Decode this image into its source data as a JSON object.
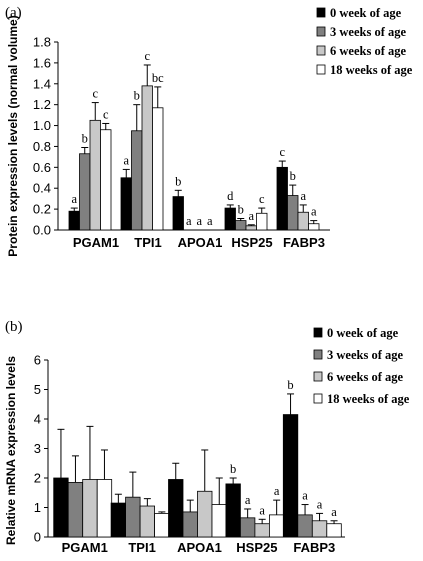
{
  "chart_data": [
    {
      "panel": "(a)",
      "type": "bar",
      "ylabel": "Protein expression levels (normal volume)",
      "ylim": [
        0,
        1.8
      ],
      "yticks": [
        0,
        0.2,
        0.4,
        0.6,
        0.8,
        1,
        1.2,
        1.4,
        1.6,
        1.8
      ],
      "ytick_labels": [
        "0.0",
        "0.2",
        "0.4",
        "0.6",
        "0.8",
        "1.0",
        "1.2",
        "1.4",
        "1.6",
        "1.8"
      ],
      "categories": [
        "PGAM1",
        "TPI1",
        "APOA1",
        "HSP25",
        "FABP3"
      ],
      "legend": "top-right",
      "grid": false,
      "series": [
        {
          "name": "0 week of age",
          "color": "#000000",
          "values": [
            0.18,
            0.5,
            0.32,
            0.21,
            0.6
          ],
          "errors": [
            0.03,
            0.08,
            0.06,
            0.03,
            0.06
          ],
          "letters": [
            "a",
            "a",
            "b",
            "d",
            "c"
          ]
        },
        {
          "name": "3 weeks of age",
          "color": "#808080",
          "values": [
            0.73,
            0.95,
            0.0,
            0.09,
            0.33
          ],
          "errors": [
            0.06,
            0.25,
            0.0,
            0.02,
            0.1
          ],
          "letters": [
            "b",
            "b",
            "a",
            "b",
            "b"
          ]
        },
        {
          "name": "6 weeks of age",
          "color": "#c8c8c8",
          "values": [
            1.05,
            1.38,
            0.0,
            0.04,
            0.17
          ],
          "errors": [
            0.17,
            0.2,
            0.0,
            0.01,
            0.07
          ],
          "letters": [
            "c",
            "c",
            "a",
            "a",
            "a"
          ]
        },
        {
          "name": "18 weeks of age",
          "color": "#ffffff",
          "values": [
            0.96,
            1.17,
            0.0,
            0.16,
            0.06
          ],
          "errors": [
            0.06,
            0.2,
            0.0,
            0.05,
            0.03
          ],
          "letters": [
            "c",
            "bc",
            "a",
            "c",
            "a"
          ]
        }
      ]
    },
    {
      "panel": "(b)",
      "type": "bar",
      "ylabel": "Relative mRNA expression levels",
      "ylim": [
        0,
        6
      ],
      "yticks": [
        0,
        1,
        2,
        3,
        4,
        5,
        6
      ],
      "ytick_labels": [
        "0",
        "1",
        "2",
        "3",
        "4",
        "5",
        "6"
      ],
      "categories": [
        "PGAM1",
        "TPI1",
        "APOA1",
        "HSP25",
        "FABP3"
      ],
      "legend": "top-right",
      "grid": false,
      "series": [
        {
          "name": "0 week of age",
          "color": "#000000",
          "values": [
            2.0,
            1.15,
            1.95,
            1.8,
            4.15
          ],
          "errors": [
            1.65,
            0.3,
            0.55,
            0.2,
            0.7
          ],
          "letters": [
            "",
            "",
            "",
            "b",
            "b"
          ]
        },
        {
          "name": "3 weeks of age",
          "color": "#808080",
          "values": [
            1.85,
            1.35,
            0.85,
            0.65,
            0.75
          ],
          "errors": [
            0.9,
            0.85,
            0.4,
            0.3,
            0.35
          ],
          "letters": [
            "",
            "",
            "",
            "a",
            "a"
          ]
        },
        {
          "name": "6 weeks of age",
          "color": "#c8c8c8",
          "values": [
            1.95,
            1.05,
            1.55,
            0.45,
            0.55
          ],
          "errors": [
            1.8,
            0.25,
            1.4,
            0.15,
            0.25
          ],
          "letters": [
            "",
            "",
            "",
            "a",
            "a"
          ]
        },
        {
          "name": "18 weeks of age",
          "color": "#ffffff",
          "values": [
            1.95,
            0.8,
            1.1,
            0.75,
            0.45
          ],
          "errors": [
            1.0,
            0.05,
            0.9,
            0.5,
            0.1
          ],
          "letters": [
            "",
            "",
            "",
            "a",
            "a"
          ]
        }
      ]
    }
  ]
}
